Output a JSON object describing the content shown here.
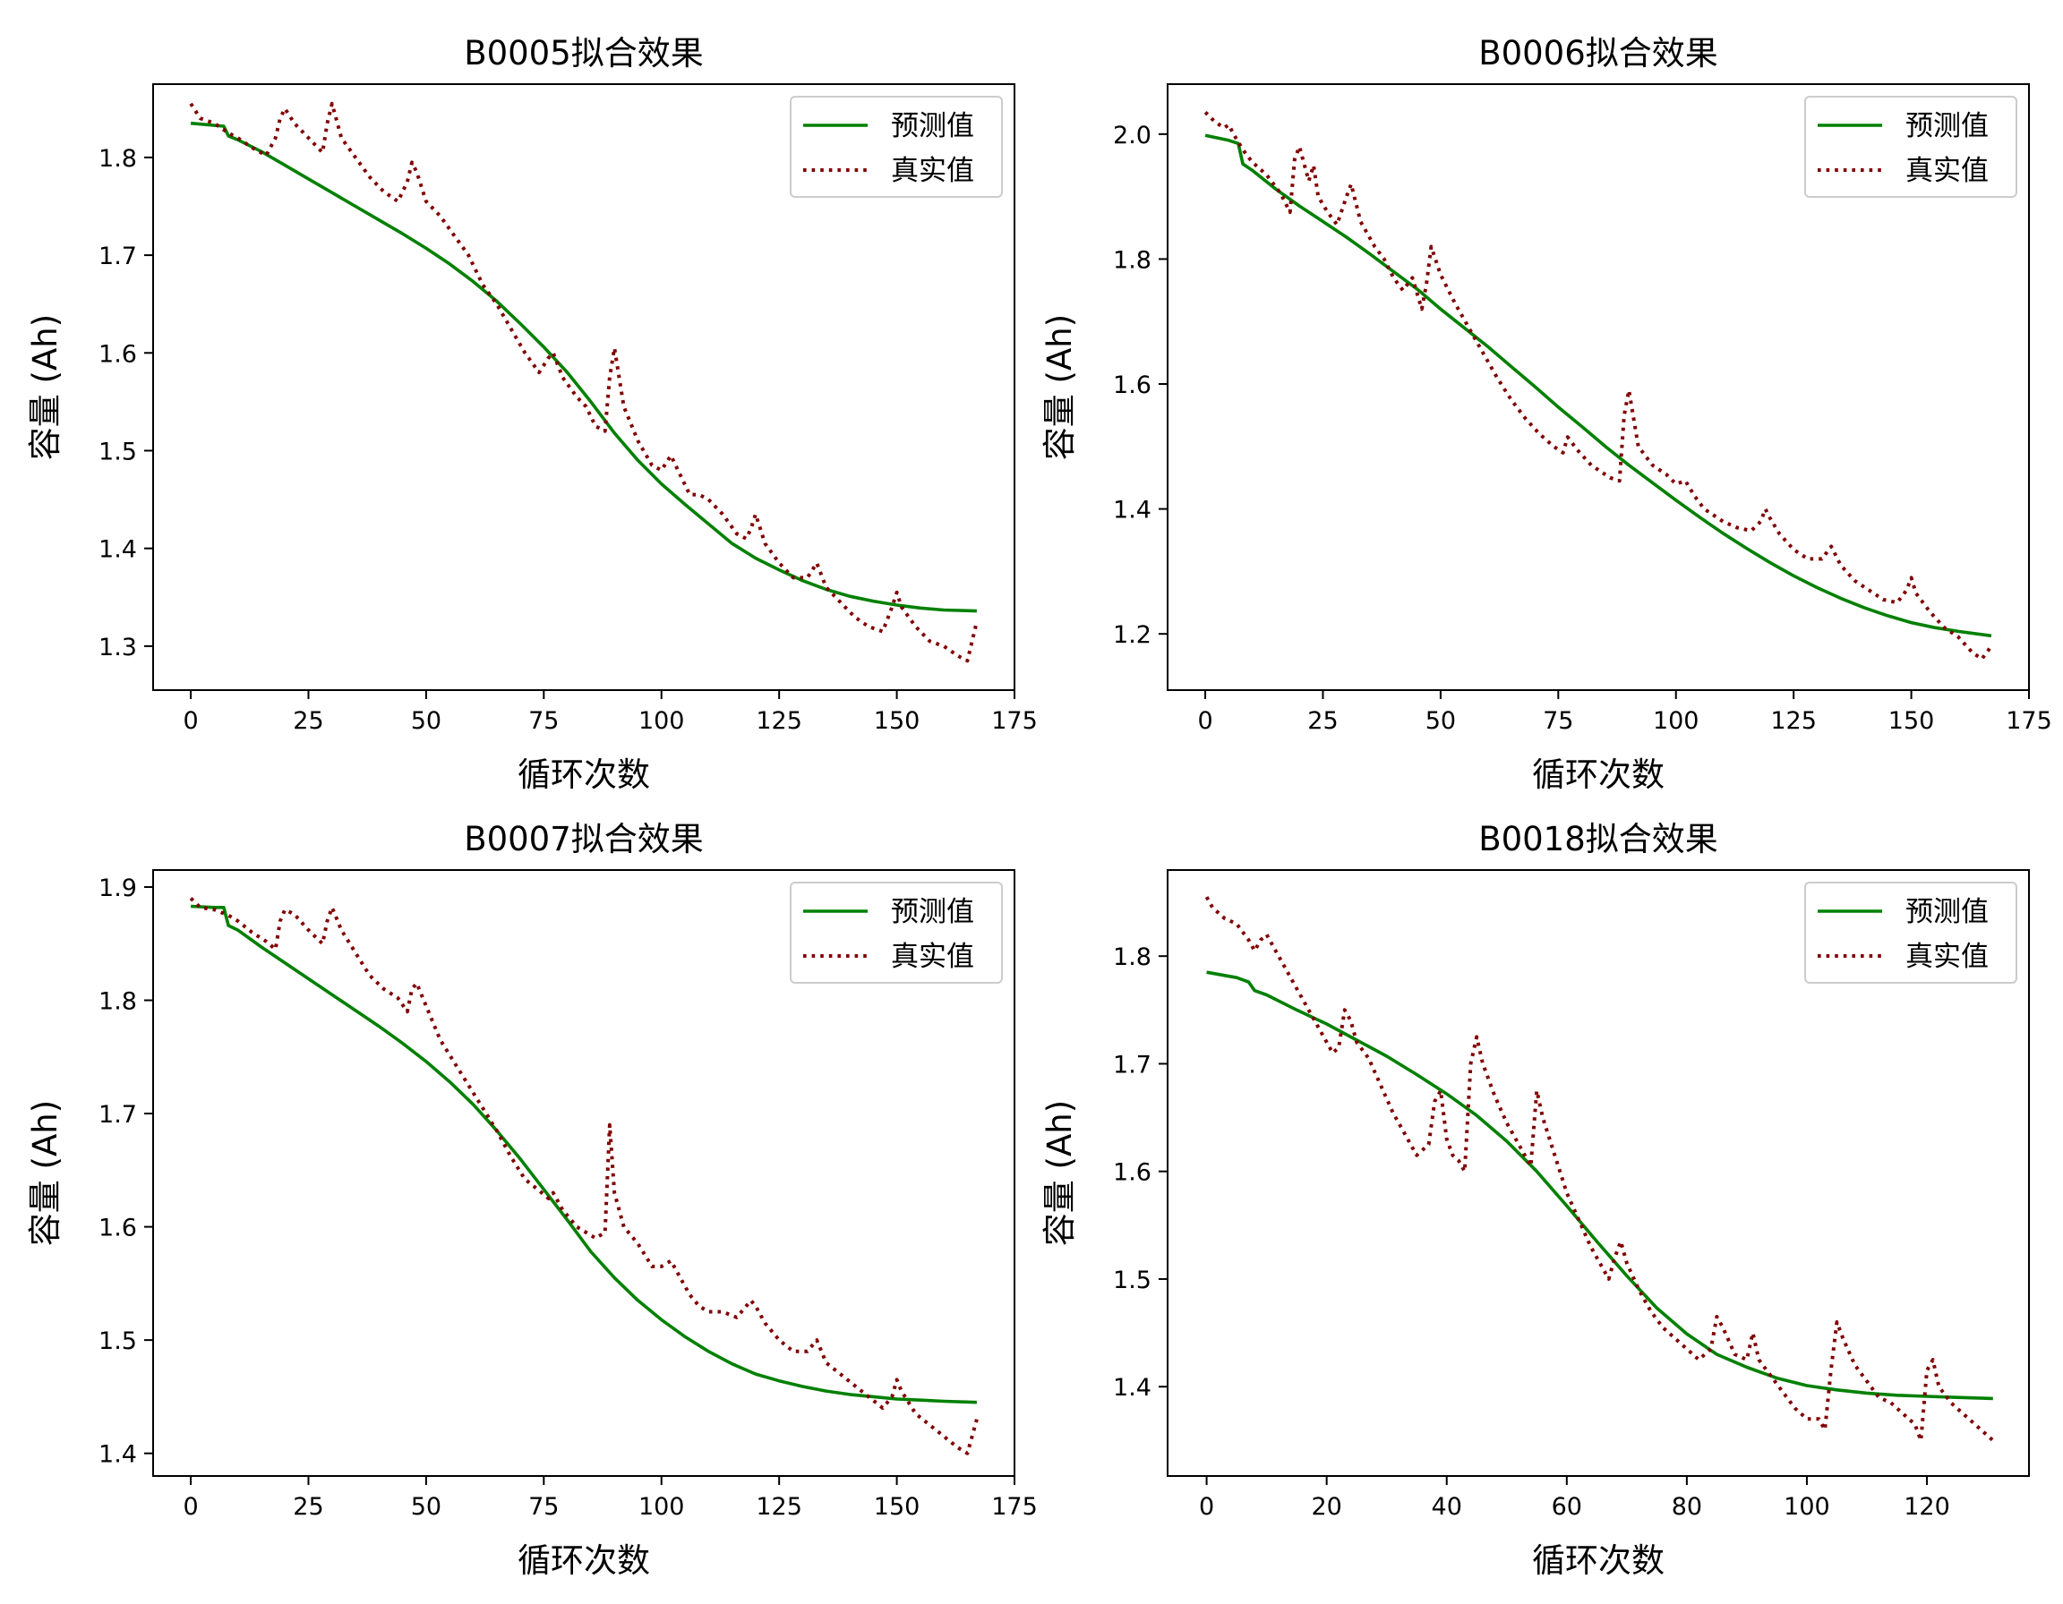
{
  "chart_data": [
    {
      "type": "line",
      "title": "B0005拟合效果",
      "xlabel": "循环次数",
      "ylabel": "容量 (Ah)",
      "xlim": [
        -8,
        175
      ],
      "ylim": [
        1.255,
        1.875
      ],
      "xticks": [
        0,
        25,
        50,
        75,
        100,
        125,
        150,
        175
      ],
      "yticks": [
        1.3,
        1.4,
        1.5,
        1.6,
        1.7,
        1.8
      ],
      "ytick_format": 1,
      "legend": "top-right",
      "series": [
        {
          "name": "预测值",
          "color": "#008000",
          "style": "solid",
          "x": [
            0,
            7,
            8,
            10,
            15,
            20,
            25,
            30,
            35,
            40,
            45,
            50,
            55,
            60,
            65,
            70,
            75,
            80,
            85,
            90,
            95,
            100,
            105,
            110,
            115,
            120,
            125,
            130,
            135,
            140,
            145,
            150,
            155,
            160,
            167
          ],
          "y": [
            1.835,
            1.832,
            1.822,
            1.818,
            1.806,
            1.792,
            1.778,
            1.764,
            1.75,
            1.736,
            1.722,
            1.707,
            1.691,
            1.673,
            1.653,
            1.63,
            1.606,
            1.58,
            1.55,
            1.518,
            1.49,
            1.466,
            1.445,
            1.425,
            1.405,
            1.39,
            1.378,
            1.367,
            1.358,
            1.351,
            1.346,
            1.342,
            1.339,
            1.337,
            1.336
          ]
        },
        {
          "name": "真实值",
          "color": "#800000",
          "style": "dotted",
          "x": [
            0,
            2,
            5,
            8,
            10,
            13,
            16,
            18,
            19,
            20,
            22,
            25,
            28,
            29,
            30,
            32,
            35,
            38,
            41,
            44,
            46,
            47,
            48,
            50,
            53,
            56,
            59,
            62,
            65,
            68,
            71,
            74,
            76,
            77,
            79,
            82,
            84,
            86,
            88,
            89,
            90,
            92,
            95,
            98,
            100,
            102,
            104,
            106,
            108,
            110,
            113,
            116,
            118,
            119,
            120,
            122,
            125,
            128,
            131,
            133,
            135,
            138,
            141,
            144,
            147,
            149,
            150,
            151,
            154,
            157,
            160,
            163,
            165,
            167
          ],
          "y": [
            1.855,
            1.84,
            1.835,
            1.825,
            1.82,
            1.81,
            1.802,
            1.82,
            1.84,
            1.85,
            1.835,
            1.82,
            1.805,
            1.835,
            1.855,
            1.82,
            1.8,
            1.78,
            1.765,
            1.755,
            1.775,
            1.795,
            1.785,
            1.755,
            1.74,
            1.72,
            1.7,
            1.67,
            1.65,
            1.625,
            1.6,
            1.58,
            1.595,
            1.6,
            1.575,
            1.555,
            1.545,
            1.525,
            1.52,
            1.575,
            1.605,
            1.545,
            1.51,
            1.485,
            1.48,
            1.495,
            1.475,
            1.455,
            1.455,
            1.45,
            1.435,
            1.415,
            1.41,
            1.42,
            1.435,
            1.405,
            1.385,
            1.37,
            1.37,
            1.385,
            1.36,
            1.345,
            1.33,
            1.32,
            1.315,
            1.34,
            1.355,
            1.34,
            1.32,
            1.305,
            1.3,
            1.29,
            1.285,
            1.325
          ]
        }
      ]
    },
    {
      "type": "line",
      "title": "B0006拟合效果",
      "xlabel": "循环次数",
      "ylabel": "容量 (Ah)",
      "xlim": [
        -8,
        175
      ],
      "ylim": [
        1.11,
        2.08
      ],
      "xticks": [
        0,
        25,
        50,
        75,
        100,
        125,
        150,
        175
      ],
      "yticks": [
        1.2,
        1.4,
        1.6,
        1.8,
        2.0
      ],
      "ytick_format": 1,
      "legend": "top-right",
      "series": [
        {
          "name": "预测值",
          "color": "#008000",
          "style": "solid",
          "x": [
            0,
            5,
            7,
            8,
            10,
            15,
            20,
            25,
            30,
            35,
            40,
            45,
            50,
            55,
            60,
            65,
            70,
            75,
            80,
            85,
            90,
            95,
            100,
            105,
            110,
            115,
            120,
            125,
            130,
            135,
            140,
            145,
            150,
            155,
            160,
            167
          ],
          "y": [
            1.998,
            1.99,
            1.985,
            1.952,
            1.942,
            1.912,
            1.885,
            1.86,
            1.835,
            1.808,
            1.78,
            1.752,
            1.72,
            1.69,
            1.66,
            1.628,
            1.596,
            1.563,
            1.532,
            1.5,
            1.47,
            1.442,
            1.414,
            1.387,
            1.361,
            1.337,
            1.314,
            1.293,
            1.274,
            1.257,
            1.242,
            1.229,
            1.218,
            1.21,
            1.204,
            1.197
          ]
        },
        {
          "name": "真实值",
          "color": "#800000",
          "style": "dotted",
          "x": [
            0,
            2,
            4,
            5,
            6,
            8,
            10,
            13,
            16,
            18,
            19,
            20,
            22,
            23,
            24,
            26,
            28,
            30,
            31,
            33,
            36,
            38,
            40,
            42,
            44,
            46,
            47,
            48,
            50,
            53,
            56,
            59,
            62,
            65,
            68,
            71,
            74,
            76,
            77,
            79,
            82,
            84,
            86,
            88,
            89,
            90,
            92,
            95,
            98,
            100,
            102,
            104,
            106,
            108,
            110,
            113,
            116,
            118,
            119,
            120,
            122,
            125,
            128,
            131,
            133,
            135,
            138,
            141,
            144,
            147,
            149,
            150,
            151,
            154,
            157,
            160,
            163,
            165,
            167
          ],
          "y": [
            2.035,
            2.02,
            2.01,
            2.015,
            2.0,
            1.975,
            1.955,
            1.935,
            1.905,
            1.875,
            1.96,
            1.98,
            1.925,
            1.95,
            1.9,
            1.875,
            1.855,
            1.9,
            1.92,
            1.86,
            1.82,
            1.8,
            1.77,
            1.75,
            1.77,
            1.72,
            1.76,
            1.82,
            1.775,
            1.73,
            1.69,
            1.65,
            1.61,
            1.575,
            1.545,
            1.52,
            1.5,
            1.49,
            1.515,
            1.495,
            1.47,
            1.46,
            1.45,
            1.445,
            1.55,
            1.59,
            1.5,
            1.47,
            1.455,
            1.44,
            1.445,
            1.42,
            1.4,
            1.39,
            1.38,
            1.37,
            1.365,
            1.38,
            1.4,
            1.385,
            1.36,
            1.335,
            1.32,
            1.32,
            1.34,
            1.31,
            1.285,
            1.27,
            1.255,
            1.25,
            1.27,
            1.29,
            1.265,
            1.235,
            1.21,
            1.195,
            1.17,
            1.16,
            1.18
          ]
        }
      ]
    },
    {
      "type": "line",
      "title": "B0007拟合效果",
      "xlabel": "循环次数",
      "ylabel": "容量 (Ah)",
      "xlim": [
        -8,
        175
      ],
      "ylim": [
        1.38,
        1.915
      ],
      "xticks": [
        0,
        25,
        50,
        75,
        100,
        125,
        150,
        175
      ],
      "yticks": [
        1.4,
        1.5,
        1.6,
        1.7,
        1.8,
        1.9
      ],
      "ytick_format": 1,
      "legend": "top-right",
      "series": [
        {
          "name": "预测值",
          "color": "#008000",
          "style": "solid",
          "x": [
            0,
            5,
            7,
            8,
            10,
            15,
            20,
            25,
            30,
            35,
            40,
            45,
            50,
            55,
            60,
            65,
            70,
            75,
            80,
            85,
            90,
            95,
            100,
            105,
            110,
            115,
            120,
            125,
            130,
            135,
            140,
            145,
            150,
            155,
            160,
            167
          ],
          "y": [
            1.883,
            1.882,
            1.882,
            1.866,
            1.862,
            1.847,
            1.833,
            1.819,
            1.805,
            1.791,
            1.777,
            1.762,
            1.746,
            1.728,
            1.708,
            1.685,
            1.66,
            1.633,
            1.606,
            1.578,
            1.555,
            1.535,
            1.518,
            1.503,
            1.49,
            1.479,
            1.47,
            1.464,
            1.459,
            1.455,
            1.452,
            1.45,
            1.448,
            1.447,
            1.446,
            1.445
          ]
        },
        {
          "name": "真实值",
          "color": "#800000",
          "style": "dotted",
          "x": [
            0,
            2,
            5,
            8,
            10,
            13,
            16,
            18,
            19,
            20,
            22,
            25,
            28,
            29,
            30,
            32,
            35,
            38,
            41,
            44,
            46,
            47,
            48,
            50,
            53,
            56,
            59,
            62,
            65,
            68,
            71,
            74,
            76,
            77,
            79,
            82,
            84,
            86,
            88,
            89,
            90,
            92,
            95,
            98,
            100,
            102,
            104,
            106,
            108,
            110,
            113,
            116,
            118,
            119,
            120,
            122,
            125,
            128,
            131,
            133,
            135,
            138,
            141,
            144,
            147,
            149,
            150,
            151,
            154,
            157,
            160,
            163,
            165,
            167
          ],
          "y": [
            1.89,
            1.882,
            1.88,
            1.875,
            1.87,
            1.86,
            1.852,
            1.845,
            1.87,
            1.88,
            1.876,
            1.862,
            1.85,
            1.87,
            1.882,
            1.862,
            1.842,
            1.822,
            1.81,
            1.802,
            1.79,
            1.81,
            1.815,
            1.795,
            1.765,
            1.745,
            1.725,
            1.705,
            1.685,
            1.662,
            1.642,
            1.632,
            1.625,
            1.63,
            1.615,
            1.6,
            1.595,
            1.59,
            1.595,
            1.69,
            1.63,
            1.6,
            1.585,
            1.565,
            1.565,
            1.57,
            1.555,
            1.54,
            1.53,
            1.525,
            1.525,
            1.52,
            1.53,
            1.535,
            1.53,
            1.515,
            1.5,
            1.49,
            1.49,
            1.5,
            1.48,
            1.47,
            1.46,
            1.45,
            1.44,
            1.45,
            1.465,
            1.455,
            1.435,
            1.425,
            1.415,
            1.405,
            1.4,
            1.43
          ]
        }
      ]
    },
    {
      "type": "line",
      "title": "B0018拟合效果",
      "xlabel": "循环次数",
      "ylabel": "容量 (Ah)",
      "xlim": [
        -6.5,
        137
      ],
      "ylim": [
        1.317,
        1.88
      ],
      "xticks": [
        0,
        20,
        40,
        60,
        80,
        100,
        120
      ],
      "yticks": [
        1.4,
        1.5,
        1.6,
        1.7,
        1.8
      ],
      "ytick_format": 1,
      "legend": "top-right",
      "series": [
        {
          "name": "预测值",
          "color": "#008000",
          "style": "solid",
          "x": [
            0,
            5,
            7,
            8,
            10,
            15,
            20,
            25,
            30,
            35,
            40,
            45,
            50,
            55,
            60,
            65,
            70,
            75,
            80,
            85,
            90,
            95,
            100,
            105,
            110,
            115,
            120,
            125,
            131
          ],
          "y": [
            1.785,
            1.78,
            1.776,
            1.768,
            1.764,
            1.75,
            1.737,
            1.722,
            1.707,
            1.69,
            1.672,
            1.652,
            1.628,
            1.6,
            1.568,
            1.535,
            1.503,
            1.473,
            1.449,
            1.43,
            1.418,
            1.408,
            1.401,
            1.397,
            1.394,
            1.392,
            1.391,
            1.39,
            1.389
          ]
        },
        {
          "name": "真实值",
          "color": "#800000",
          "style": "dotted",
          "x": [
            0,
            1,
            3,
            5,
            7,
            8,
            9,
            10,
            12,
            14,
            16,
            18,
            20,
            21,
            22,
            23,
            24,
            25,
            27,
            29,
            31,
            33,
            35,
            37,
            38,
            39,
            40,
            41,
            42,
            43,
            44,
            45,
            46,
            48,
            50,
            52,
            53,
            54,
            55,
            56,
            58,
            60,
            62,
            64,
            66,
            67,
            68,
            69,
            70,
            72,
            74,
            76,
            78,
            80,
            82,
            84,
            85,
            86,
            88,
            90,
            91,
            92,
            94,
            96,
            98,
            100,
            102,
            103,
            104,
            105,
            106,
            108,
            110,
            112,
            114,
            116,
            118,
            119,
            120,
            121,
            122,
            124,
            126,
            128,
            130,
            131
          ],
          "y": [
            1.855,
            1.845,
            1.835,
            1.83,
            1.815,
            1.805,
            1.815,
            1.82,
            1.8,
            1.78,
            1.76,
            1.74,
            1.72,
            1.71,
            1.715,
            1.75,
            1.74,
            1.72,
            1.705,
            1.68,
            1.655,
            1.635,
            1.615,
            1.625,
            1.665,
            1.675,
            1.63,
            1.615,
            1.61,
            1.6,
            1.7,
            1.725,
            1.7,
            1.67,
            1.645,
            1.625,
            1.615,
            1.605,
            1.675,
            1.65,
            1.615,
            1.58,
            1.555,
            1.53,
            1.51,
            1.5,
            1.52,
            1.535,
            1.515,
            1.49,
            1.47,
            1.455,
            1.445,
            1.435,
            1.425,
            1.435,
            1.465,
            1.455,
            1.43,
            1.425,
            1.45,
            1.425,
            1.41,
            1.395,
            1.38,
            1.37,
            1.37,
            1.36,
            1.415,
            1.46,
            1.445,
            1.42,
            1.405,
            1.39,
            1.385,
            1.375,
            1.365,
            1.35,
            1.415,
            1.425,
            1.4,
            1.385,
            1.375,
            1.365,
            1.355,
            1.35
          ]
        }
      ]
    }
  ]
}
